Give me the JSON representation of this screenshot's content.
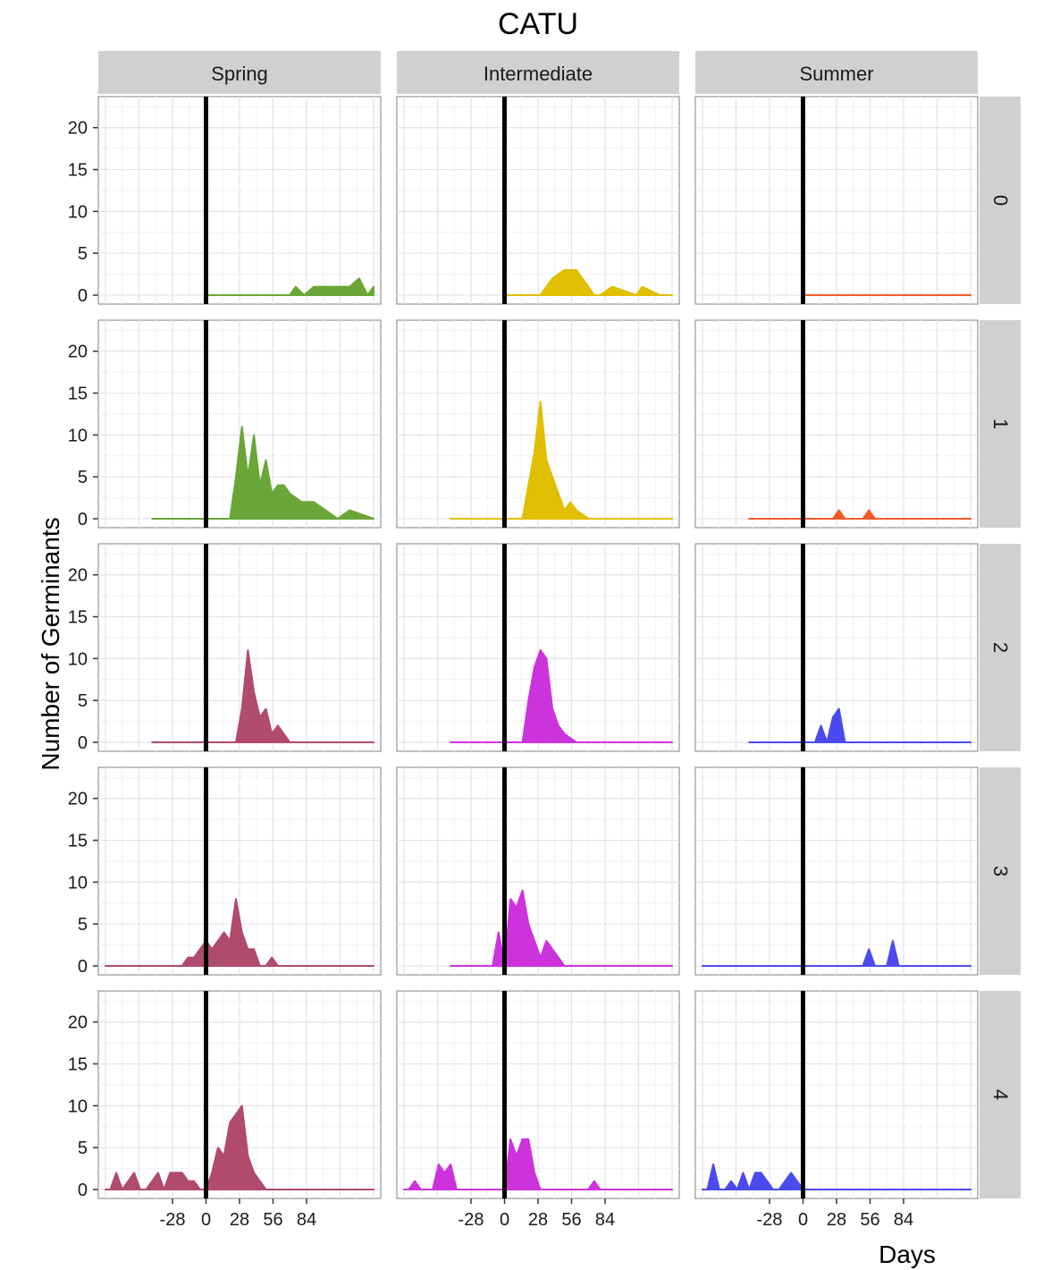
{
  "chart_data": {
    "type": "area",
    "title": "CATU",
    "xlabel": "Days",
    "ylabel": "Number of Germinants",
    "columns": [
      "Spring",
      "Intermediate",
      "Summer"
    ],
    "rows": [
      "0",
      "1",
      "2",
      "3",
      "4"
    ],
    "xlim": [
      -84,
      140
    ],
    "ylim": [
      0,
      22
    ],
    "x_ticks": [
      -28,
      0,
      28,
      56,
      84
    ],
    "y_ticks": [
      0,
      5,
      10,
      15,
      20
    ],
    "vline_x": 0,
    "grid": true,
    "colors": {
      "row0": {
        "Spring": "#6aa637",
        "Intermediate": "#e0be00",
        "Summer": "#f05a28"
      },
      "row1": {
        "Spring": "#6aa637",
        "Intermediate": "#e0be00",
        "Summer": "#f05a28"
      },
      "row2": {
        "Spring": "#b04a6e",
        "Intermediate": "#cc33dd",
        "Summer": "#4a4af0"
      },
      "row3": {
        "Spring": "#b04a6e",
        "Intermediate": "#cc33dd",
        "Summer": "#4a4af0"
      },
      "row4": {
        "Spring": "#b04a6e",
        "Intermediate": "#cc33dd",
        "Summer": "#4a4af0"
      }
    },
    "panels": [
      {
        "row": "0",
        "col": "Spring",
        "x": [
          0,
          60,
          70,
          75,
          82,
          90,
          100,
          110,
          120,
          128,
          135,
          140
        ],
        "y": [
          0,
          0,
          0,
          1,
          0,
          1,
          1,
          1,
          1,
          2,
          0,
          1
        ]
      },
      {
        "row": "0",
        "col": "Intermediate",
        "x": [
          0,
          30,
          40,
          50,
          60,
          65,
          75,
          80,
          90,
          110,
          115,
          130,
          140
        ],
        "y": [
          0,
          0,
          2,
          3,
          3,
          2,
          0,
          0,
          1,
          0,
          1,
          0,
          0
        ]
      },
      {
        "row": "0",
        "col": "Summer",
        "x": [
          0,
          140
        ],
        "y": [
          0,
          0
        ]
      },
      {
        "row": "1",
        "col": "Spring",
        "x": [
          -45,
          0,
          20,
          25,
          30,
          35,
          40,
          45,
          50,
          55,
          60,
          65,
          70,
          80,
          90,
          100,
          110,
          120,
          140
        ],
        "y": [
          0,
          0,
          0,
          5,
          11,
          5,
          10,
          4,
          7,
          3,
          4,
          4,
          3,
          2,
          2,
          1,
          0,
          1,
          0
        ]
      },
      {
        "row": "1",
        "col": "Intermediate",
        "x": [
          -45,
          0,
          15,
          20,
          25,
          30,
          35,
          40,
          45,
          50,
          55,
          60,
          70,
          140
        ],
        "y": [
          0,
          0,
          0,
          4,
          8,
          14,
          7,
          5,
          3,
          1,
          2,
          1,
          0,
          0
        ]
      },
      {
        "row": "1",
        "col": "Summer",
        "x": [
          -45,
          0,
          25,
          30,
          35,
          50,
          55,
          60,
          140
        ],
        "y": [
          0,
          0,
          0,
          1,
          0,
          0,
          1,
          0,
          0
        ]
      },
      {
        "row": "2",
        "col": "Spring",
        "x": [
          -45,
          0,
          25,
          30,
          35,
          40,
          45,
          50,
          55,
          60,
          65,
          70,
          140
        ],
        "y": [
          0,
          0,
          0,
          4,
          11,
          6,
          3,
          4,
          1,
          2,
          1,
          0,
          0
        ]
      },
      {
        "row": "2",
        "col": "Intermediate",
        "x": [
          -45,
          0,
          15,
          20,
          25,
          30,
          35,
          40,
          45,
          50,
          60,
          140
        ],
        "y": [
          0,
          0,
          0,
          5,
          9,
          11,
          10,
          4,
          2,
          1,
          0,
          0
        ]
      },
      {
        "row": "2",
        "col": "Summer",
        "x": [
          -45,
          0,
          10,
          15,
          20,
          25,
          30,
          35,
          140
        ],
        "y": [
          0,
          0,
          0,
          2,
          0,
          3,
          4,
          0,
          0
        ]
      },
      {
        "row": "3",
        "col": "Spring",
        "x": [
          -84,
          -20,
          -15,
          -10,
          -5,
          0,
          5,
          10,
          15,
          20,
          25,
          30,
          35,
          40,
          45,
          50,
          55,
          60,
          70,
          140
        ],
        "y": [
          0,
          0,
          1,
          1,
          2,
          3,
          2,
          3,
          4,
          3,
          8,
          4,
          2,
          2,
          0,
          0,
          1,
          0,
          0,
          0
        ]
      },
      {
        "row": "3",
        "col": "Intermediate",
        "x": [
          -45,
          -10,
          -5,
          0,
          5,
          10,
          15,
          20,
          25,
          30,
          35,
          40,
          45,
          50,
          60,
          140
        ],
        "y": [
          0,
          0,
          4,
          0,
          8,
          7,
          9,
          5,
          3,
          1,
          3,
          2,
          1,
          0,
          0,
          0
        ]
      },
      {
        "row": "3",
        "col": "Summer",
        "x": [
          -84,
          50,
          55,
          60,
          70,
          75,
          80,
          140
        ],
        "y": [
          0,
          0,
          2,
          0,
          0,
          3,
          0,
          0
        ]
      },
      {
        "row": "4",
        "col": "Spring",
        "x": [
          -84,
          -80,
          -75,
          -70,
          -60,
          -55,
          -50,
          -40,
          -35,
          -30,
          -20,
          -15,
          -10,
          -5,
          0,
          5,
          10,
          15,
          20,
          25,
          30,
          35,
          40,
          45,
          50,
          55,
          60,
          140
        ],
        "y": [
          0,
          0,
          2,
          0,
          2,
          0,
          0,
          2,
          0,
          2,
          2,
          1,
          1,
          0,
          0,
          2,
          5,
          4,
          8,
          9,
          10,
          4,
          2,
          1,
          0,
          0,
          0,
          0
        ]
      },
      {
        "row": "4",
        "col": "Intermediate",
        "x": [
          -84,
          -80,
          -75,
          -70,
          -60,
          -55,
          -50,
          -45,
          -40,
          0,
          5,
          10,
          15,
          20,
          25,
          30,
          40,
          45,
          50,
          70,
          75,
          80,
          140
        ],
        "y": [
          0,
          0,
          1,
          0,
          0,
          3,
          2,
          3,
          0,
          0,
          6,
          4,
          6,
          6,
          2,
          0,
          0,
          0,
          0,
          0,
          1,
          0,
          0
        ]
      },
      {
        "row": "4",
        "col": "Summer",
        "x": [
          -84,
          -80,
          -75,
          -70,
          -65,
          -60,
          -55,
          -50,
          -45,
          -40,
          -35,
          -30,
          -25,
          -20,
          -10,
          0,
          140
        ],
        "y": [
          0,
          0,
          3,
          0,
          0,
          1,
          0,
          2,
          0,
          2,
          2,
          1,
          0,
          0,
          2,
          0,
          0
        ]
      }
    ]
  }
}
